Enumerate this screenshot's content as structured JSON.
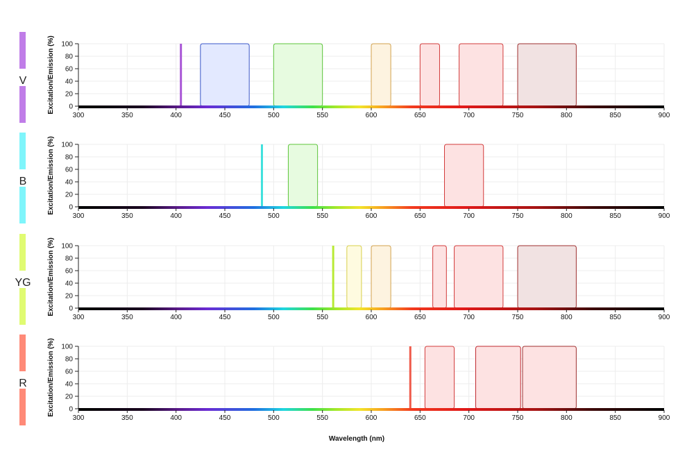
{
  "chart_data": {
    "type": "area",
    "xlabel": "Wavelength (nm)",
    "ylabel": "Excitation/Emission (%)",
    "xlim": [
      300,
      900
    ],
    "ylim": [
      0,
      100
    ],
    "x_ticks": [
      300,
      350,
      400,
      450,
      500,
      550,
      600,
      650,
      700,
      750,
      800,
      850,
      900
    ],
    "y_ticks": [
      0,
      20,
      40,
      60,
      80,
      100
    ],
    "grid": true,
    "panels": [
      {
        "laser": "V",
        "laser_color": "#c07de8",
        "line": {
          "x": 405,
          "color": "#a855d6"
        },
        "filters": [
          {
            "x0": 425,
            "x1": 475,
            "fill": "#e3e9ff",
            "stroke": "#3a56c8"
          },
          {
            "x0": 500,
            "x1": 550,
            "fill": "#e7fbe0",
            "stroke": "#5cc43a"
          },
          {
            "x0": 600,
            "x1": 620,
            "fill": "#fdf3e0",
            "stroke": "#d2a24c"
          },
          {
            "x0": 650,
            "x1": 670,
            "fill": "#fde2e2",
            "stroke": "#d23a3a"
          },
          {
            "x0": 690,
            "x1": 735,
            "fill": "#fde2e2",
            "stroke": "#d23a3a"
          },
          {
            "x0": 750,
            "x1": 810,
            "fill": "#f1e2e2",
            "stroke": "#9e2f2f"
          }
        ]
      },
      {
        "laser": "B",
        "laser_color": "#7ff5fb",
        "line": {
          "x": 488,
          "color": "#3fe0dc"
        },
        "filters": [
          {
            "x0": 515,
            "x1": 545,
            "fill": "#e7fbe0",
            "stroke": "#5cc43a"
          },
          {
            "x0": 675,
            "x1": 715,
            "fill": "#fde2e2",
            "stroke": "#d23a3a"
          }
        ]
      },
      {
        "laser": "YG",
        "laser_color": "#e0fb72",
        "line": {
          "x": 561,
          "color": "#b8ea34"
        },
        "filters": [
          {
            "x0": 575,
            "x1": 590,
            "fill": "#fefbe0",
            "stroke": "#d8d04a"
          },
          {
            "x0": 600,
            "x1": 620,
            "fill": "#fdf3e0",
            "stroke": "#d2a24c"
          },
          {
            "x0": 663,
            "x1": 677,
            "fill": "#fde2e2",
            "stroke": "#d23a3a"
          },
          {
            "x0": 685,
            "x1": 735,
            "fill": "#fde2e2",
            "stroke": "#d23a3a"
          },
          {
            "x0": 750,
            "x1": 810,
            "fill": "#f1e2e2",
            "stroke": "#9e2f2f"
          }
        ]
      },
      {
        "laser": "R",
        "laser_color": "#ff8a78",
        "line": {
          "x": 640,
          "color": "#ef5a4a"
        },
        "filters": [
          {
            "x0": 655,
            "x1": 685,
            "fill": "#fde2e2",
            "stroke": "#d23a3a"
          },
          {
            "x0": 707,
            "x1": 753,
            "fill": "#fde2e2",
            "stroke": "#c0282f"
          },
          {
            "x0": 755,
            "x1": 810,
            "fill": "#fde2e2",
            "stroke": "#9e2f2f"
          }
        ]
      }
    ]
  }
}
